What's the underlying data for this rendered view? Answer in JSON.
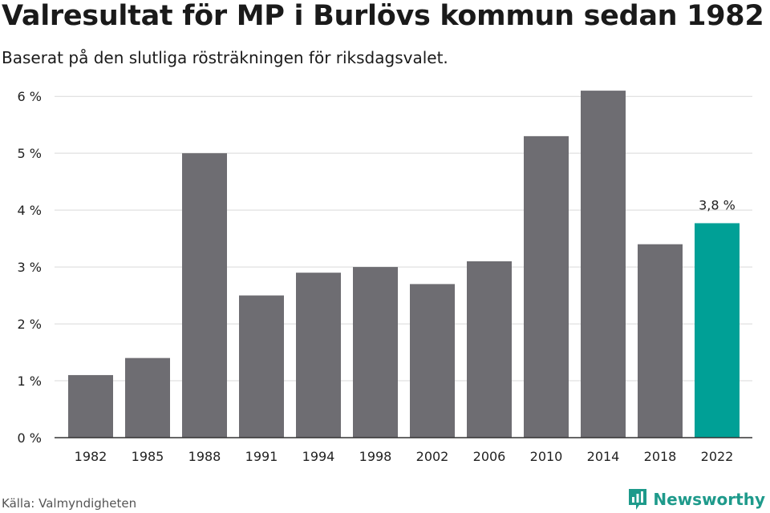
{
  "chart_data": {
    "type": "bar",
    "title": "Valresultat för MP i Burlövs kommun sedan 1982",
    "subtitle": "Baserat på den slutliga rösträkningen för riksdagsvalet.",
    "xlabel": "",
    "ylabel": "",
    "categories": [
      "1982",
      "1985",
      "1988",
      "1991",
      "1994",
      "1998",
      "2002",
      "2006",
      "2010",
      "2014",
      "2018",
      "2022"
    ],
    "values": [
      1.1,
      1.4,
      5.0,
      2.5,
      2.9,
      3.0,
      2.7,
      3.1,
      5.3,
      6.1,
      3.4,
      3.77
    ],
    "ylim": [
      0,
      6.2
    ],
    "yticks": [
      0,
      1,
      2,
      3,
      4,
      5,
      6
    ],
    "ytick_labels": [
      "0 %",
      "1 %",
      "2 %",
      "3 %",
      "4 %",
      "5 %",
      "6 %"
    ],
    "grid": true,
    "highlight_index": 11,
    "highlight_label": "3,8 %",
    "colors": {
      "bar": "#6e6d72",
      "highlight": "#00a096",
      "grid": "#d9d9d9",
      "axis": "#333333"
    }
  },
  "footer": {
    "source": "Källa: Valmyndigheten",
    "brand": "Newsworthy",
    "brand_icon": "newsworthy-logo-icon"
  }
}
